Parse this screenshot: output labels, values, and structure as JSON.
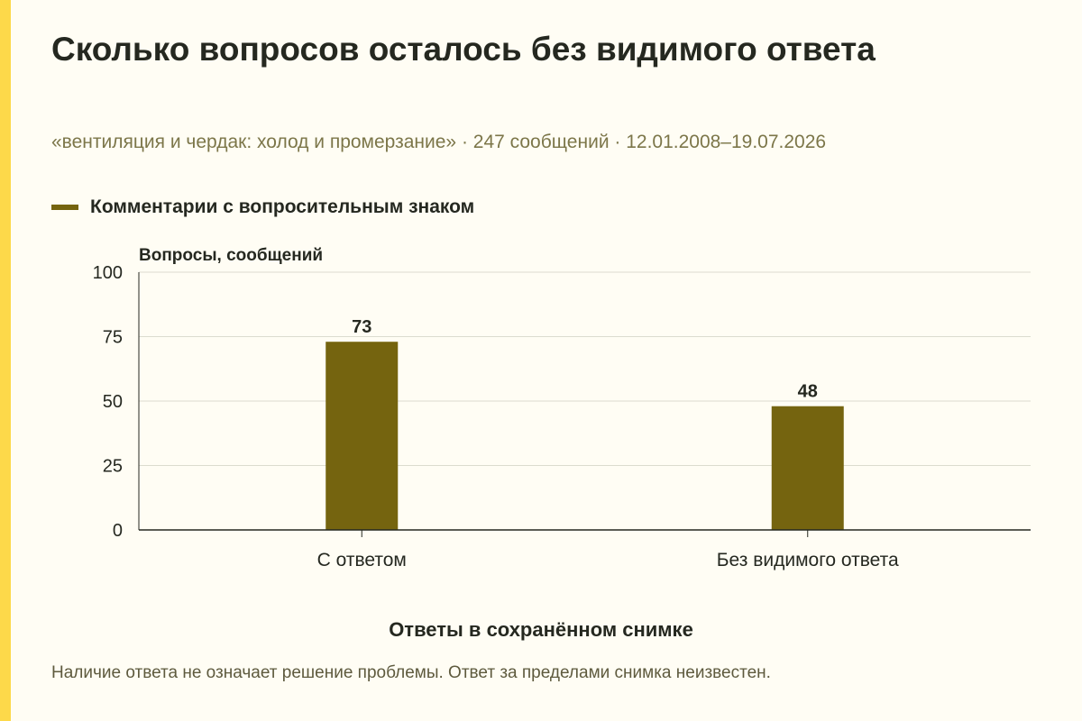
{
  "header": {
    "title": "Сколько вопросов осталось без видимого ответа",
    "subtitle": "«вентиляция и чердак: холод и промерзание» · 247 сообщений · 12.01.2008–19.07.2026"
  },
  "footer": {
    "note": "Наличие ответа не означает решение проблемы. Ответ за пределами снимка неизвестен."
  },
  "colors": {
    "accent": "#fdd94a",
    "bar": "#75640f",
    "background": "#fffdf4"
  },
  "chart_data": {
    "type": "bar",
    "title": "Сколько вопросов осталось без видимого ответа",
    "categories": [
      "С ответом",
      "Без видимого ответа"
    ],
    "series": [
      {
        "name": "Комментарии с вопросительным знаком",
        "values": [
          73,
          48
        ]
      }
    ],
    "xlabel": "Ответы в сохранённом снимке",
    "ylabel": "Вопросы, сообщений",
    "ylim": [
      0,
      100
    ],
    "yticks": [
      0,
      25,
      50,
      75,
      100
    ],
    "grid": true,
    "legend": "top-left",
    "data_labels": true
  }
}
